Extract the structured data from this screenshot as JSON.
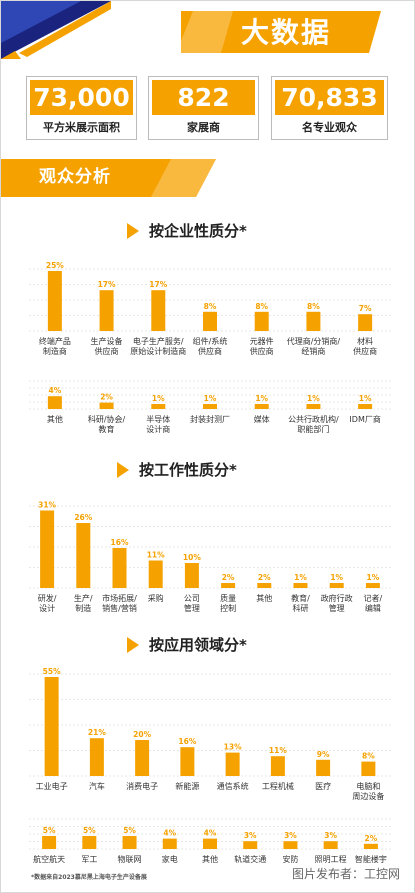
{
  "header": {
    "title": "大数据",
    "colors": {
      "accent": "#f5a200",
      "corner_blue": "#2a3a9a",
      "corner_dark": "#1a237e"
    }
  },
  "stats": [
    {
      "value": "73,000",
      "label": "平方米展示面积"
    },
    {
      "value": "822",
      "label": "家展商"
    },
    {
      "value": "70,833",
      "label": "名专业观众"
    }
  ],
  "section": {
    "title": "观众分析"
  },
  "charts": [
    {
      "title": "按企业性质分*",
      "rows": [
        {
          "items": [
            {
              "label": "终端产品\n制造商",
              "value": 25,
              "display": "25%"
            },
            {
              "label": "生产设备\n供应商",
              "value": 17,
              "display": "17%"
            },
            {
              "label": "电子生产服务/\n原始设计制造商",
              "value": 17,
              "display": "17%"
            },
            {
              "label": "组件/系统\n供应商",
              "value": 8,
              "display": "8%"
            },
            {
              "label": "元器件\n供应商",
              "value": 8,
              "display": "8%"
            },
            {
              "label": "代理商/分销商/\n经销商",
              "value": 8,
              "display": "8%"
            },
            {
              "label": "材料\n供应商",
              "value": 7,
              "display": "7%"
            }
          ]
        },
        {
          "items": [
            {
              "label": "其他",
              "value": 4,
              "display": "4%"
            },
            {
              "label": "科研/协会/\n教育",
              "value": 2,
              "display": "2%"
            },
            {
              "label": "半导体\n设计商",
              "value": 1,
              "display": "1%"
            },
            {
              "label": "封装封测厂",
              "value": 1,
              "display": "1%"
            },
            {
              "label": "媒体",
              "value": 1,
              "display": "1%"
            },
            {
              "label": "公共行政机构/\n职能部门",
              "value": 1,
              "display": "1%"
            },
            {
              "label": "IDM厂商",
              "value": 1,
              "display": "1%"
            }
          ]
        }
      ]
    },
    {
      "title": "按工作性质分*",
      "rows": [
        {
          "items": [
            {
              "label": "研发/\n设计",
              "value": 31,
              "display": "31%"
            },
            {
              "label": "生产/\n制造",
              "value": 26,
              "display": "26%"
            },
            {
              "label": "市场拓展/\n销售/营销",
              "value": 16,
              "display": "16%"
            },
            {
              "label": "采购",
              "value": 11,
              "display": "11%"
            },
            {
              "label": "公司\n管理",
              "value": 10,
              "display": "10%"
            },
            {
              "label": "质量\n控制",
              "value": 2,
              "display": "2%"
            },
            {
              "label": "其他",
              "value": 2,
              "display": "2%"
            },
            {
              "label": "教育/\n科研",
              "value": 1,
              "display": "1%"
            },
            {
              "label": "政府行政\n管理",
              "value": 1,
              "display": "1%"
            },
            {
              "label": "记者/\n编辑",
              "value": 1,
              "display": "1%"
            }
          ]
        }
      ]
    },
    {
      "title": "按应用领域分*",
      "rows": [
        {
          "items": [
            {
              "label": "工业电子",
              "value": 55,
              "display": "55%"
            },
            {
              "label": "汽车",
              "value": 21,
              "display": "21%"
            },
            {
              "label": "消费电子",
              "value": 20,
              "display": "20%"
            },
            {
              "label": "新能源",
              "value": 16,
              "display": "16%"
            },
            {
              "label": "通信系统",
              "value": 13,
              "display": "13%"
            },
            {
              "label": "工程机械",
              "value": 11,
              "display": "11%"
            },
            {
              "label": "医疗",
              "value": 9,
              "display": "9%"
            },
            {
              "label": "电脑和\n周边设备",
              "value": 8,
              "display": "8%"
            }
          ]
        },
        {
          "items": [
            {
              "label": "航空航天",
              "value": 5,
              "display": "5%"
            },
            {
              "label": "军工",
              "value": 5,
              "display": "5%"
            },
            {
              "label": "物联网",
              "value": 5,
              "display": "5%"
            },
            {
              "label": "家电",
              "value": 4,
              "display": "4%"
            },
            {
              "label": "其他",
              "value": 4,
              "display": "4%"
            },
            {
              "label": "轨道交通",
              "value": 3,
              "display": "3%"
            },
            {
              "label": "安防",
              "value": 3,
              "display": "3%"
            },
            {
              "label": "照明工程",
              "value": 3,
              "display": "3%"
            },
            {
              "label": "智能楼宇",
              "value": 2,
              "display": "2%"
            }
          ]
        }
      ]
    }
  ],
  "footnote": "*数据来自2023慕尼黑上海电子生产设备展",
  "watermark": "图片发布者：工控网"
}
